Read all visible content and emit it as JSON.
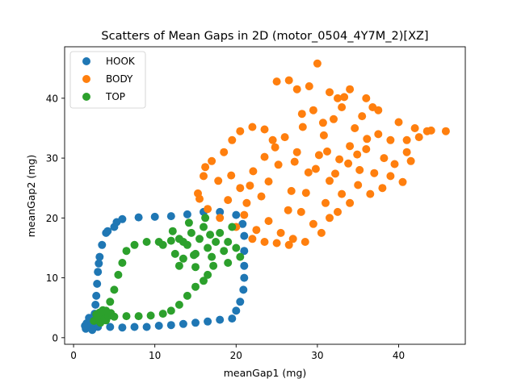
{
  "chart_data": {
    "type": "scatter",
    "title": "Scatters of Mean Gaps in 2D (motor_0504_4Y7M_2)[XZ]",
    "xlabel": "meanGap1 (mg)",
    "ylabel": "meanGap2 (mg)",
    "xlim": [
      -1.1,
      48.2
    ],
    "ylim": [
      -1.1,
      48.6
    ],
    "xticks": [
      0,
      10,
      20,
      30,
      40
    ],
    "yticks": [
      0,
      10,
      20,
      30,
      40
    ],
    "grid": false,
    "legend_position": "top-left",
    "series": [
      {
        "name": "HOOK",
        "color": "#1f77b4",
        "points": [
          [
            1.5,
            1.5
          ],
          [
            1.8,
            2.2
          ],
          [
            2.1,
            1.8
          ],
          [
            2.4,
            2.6
          ],
          [
            2.0,
            2.9
          ],
          [
            1.6,
            2.4
          ],
          [
            2.7,
            1.9
          ],
          [
            3.0,
            2.4
          ],
          [
            2.3,
            1.3
          ],
          [
            1.9,
            3.3
          ],
          [
            2.6,
            3.1
          ],
          [
            1.4,
            2.0
          ],
          [
            2.9,
            2.8
          ],
          [
            2.2,
            2.2
          ],
          [
            3.0,
            1.8
          ],
          [
            4.5,
            1.8
          ],
          [
            6.0,
            1.7
          ],
          [
            7.5,
            1.8
          ],
          [
            9.0,
            1.8
          ],
          [
            10.5,
            2.0
          ],
          [
            12.0,
            2.1
          ],
          [
            13.5,
            2.3
          ],
          [
            15.0,
            2.5
          ],
          [
            16.5,
            2.7
          ],
          [
            18.0,
            3.0
          ],
          [
            19.5,
            3.2
          ],
          [
            20.0,
            4.5
          ],
          [
            20.5,
            6.0
          ],
          [
            20.9,
            8.0
          ],
          [
            21.0,
            10.0
          ],
          [
            21.0,
            12.0
          ],
          [
            21.0,
            14.5
          ],
          [
            21.0,
            17.0
          ],
          [
            20.8,
            19.0
          ],
          [
            20.0,
            20.5
          ],
          [
            18.0,
            21.0
          ],
          [
            16.0,
            21.0
          ],
          [
            14.0,
            20.6
          ],
          [
            12.0,
            20.3
          ],
          [
            10.0,
            20.2
          ],
          [
            8.0,
            20.1
          ],
          [
            6.0,
            19.8
          ],
          [
            5.0,
            18.5
          ],
          [
            4.0,
            17.5
          ],
          [
            3.5,
            15.5
          ],
          [
            3.2,
            13.5
          ],
          [
            3.0,
            11.0
          ],
          [
            2.9,
            9.0
          ],
          [
            2.8,
            7.0
          ],
          [
            2.7,
            5.5
          ],
          [
            2.6,
            4.0
          ],
          [
            5.3,
            19.3
          ],
          [
            4.2,
            17.8
          ],
          [
            3.1,
            12.4
          ]
        ]
      },
      {
        "name": "BODY",
        "color": "#ff7f0e",
        "points": [
          [
            15.3,
            24.1
          ],
          [
            16.2,
            28.5
          ],
          [
            17.8,
            26.2
          ],
          [
            19.0,
            23.0
          ],
          [
            20.5,
            25.0
          ],
          [
            21.3,
            22.5
          ],
          [
            22.1,
            27.8
          ],
          [
            23.5,
            30.2
          ],
          [
            24.0,
            26.1
          ],
          [
            25.2,
            28.9
          ],
          [
            26.0,
            33.5
          ],
          [
            26.8,
            24.5
          ],
          [
            27.5,
            31.0
          ],
          [
            28.2,
            35.2
          ],
          [
            28.9,
            27.6
          ],
          [
            29.5,
            38.0
          ],
          [
            30.2,
            30.5
          ],
          [
            30.8,
            33.8
          ],
          [
            31.5,
            26.2
          ],
          [
            32.0,
            36.5
          ],
          [
            32.7,
            29.8
          ],
          [
            33.3,
            40.2
          ],
          [
            34.0,
            32.0
          ],
          [
            34.6,
            35.0
          ],
          [
            35.2,
            28.0
          ],
          [
            36.0,
            31.5
          ],
          [
            36.8,
            38.5
          ],
          [
            37.5,
            34.0
          ],
          [
            38.2,
            30.0
          ],
          [
            39.0,
            33.0
          ],
          [
            40.0,
            36.0
          ],
          [
            41.0,
            31.0
          ],
          [
            42.0,
            35.0
          ],
          [
            43.5,
            34.5
          ],
          [
            45.8,
            34.5
          ],
          [
            21.0,
            20.5
          ],
          [
            22.5,
            18.0
          ],
          [
            24.0,
            19.5
          ],
          [
            25.5,
            17.5
          ],
          [
            27.0,
            16.5
          ],
          [
            28.0,
            21.0
          ],
          [
            29.5,
            19.0
          ],
          [
            31.0,
            22.5
          ],
          [
            33.0,
            24.0
          ],
          [
            35.0,
            25.5
          ],
          [
            37.0,
            27.5
          ],
          [
            39.5,
            29.0
          ],
          [
            41.5,
            29.5
          ],
          [
            40.5,
            26.0
          ],
          [
            38.0,
            25.0
          ],
          [
            25.0,
            42.8
          ],
          [
            26.5,
            43.0
          ],
          [
            27.5,
            41.5
          ],
          [
            29.0,
            42.0
          ],
          [
            30.0,
            45.8
          ],
          [
            31.5,
            41.0
          ],
          [
            32.5,
            40.0
          ],
          [
            34.0,
            41.5
          ],
          [
            36.0,
            40.0
          ],
          [
            37.5,
            38.0
          ],
          [
            35.5,
            37.0
          ],
          [
            33.0,
            38.5
          ],
          [
            15.5,
            23.2
          ],
          [
            16.0,
            27.0
          ],
          [
            17.0,
            29.5
          ],
          [
            18.5,
            31.0
          ],
          [
            19.5,
            33.0
          ],
          [
            20.5,
            34.5
          ],
          [
            22.0,
            35.2
          ],
          [
            23.5,
            34.8
          ],
          [
            24.5,
            33.0
          ],
          [
            18.0,
            20.0
          ],
          [
            16.5,
            21.5
          ],
          [
            20.0,
            18.5
          ],
          [
            22.0,
            16.5
          ],
          [
            23.5,
            16.0
          ],
          [
            25.0,
            15.8
          ],
          [
            26.5,
            15.5
          ],
          [
            28.5,
            16.0
          ],
          [
            30.5,
            17.5
          ],
          [
            31.5,
            20.0
          ],
          [
            32.5,
            21.0
          ],
          [
            34.0,
            22.5
          ],
          [
            36.5,
            24.0
          ],
          [
            39.0,
            27.0
          ],
          [
            41.0,
            33.0
          ],
          [
            42.5,
            33.5
          ],
          [
            44.0,
            34.6
          ],
          [
            24.8,
            31.8
          ],
          [
            27.2,
            29.4
          ],
          [
            29.8,
            28.2
          ],
          [
            31.2,
            31.1
          ],
          [
            33.8,
            29.1
          ],
          [
            28.6,
            24.2
          ],
          [
            26.4,
            21.3
          ],
          [
            23.1,
            23.6
          ],
          [
            21.7,
            25.4
          ],
          [
            19.4,
            27.1
          ],
          [
            32.2,
            27.4
          ],
          [
            34.9,
            30.6
          ],
          [
            36.1,
            33.2
          ],
          [
            30.7,
            35.9
          ],
          [
            28.1,
            37.4
          ]
        ]
      },
      {
        "name": "TOP",
        "color": "#2ca02c",
        "points": [
          [
            2.5,
            2.8
          ],
          [
            3.0,
            3.3
          ],
          [
            3.5,
            3.8
          ],
          [
            4.0,
            2.9
          ],
          [
            3.2,
            4.2
          ],
          [
            3.8,
            3.1
          ],
          [
            4.3,
            3.6
          ],
          [
            2.8,
            3.9
          ],
          [
            3.6,
            4.6
          ],
          [
            4.6,
            4.1
          ],
          [
            3.3,
            2.5
          ],
          [
            4.0,
            4.5
          ],
          [
            4.5,
            6.0
          ],
          [
            5.0,
            8.0
          ],
          [
            5.5,
            10.5
          ],
          [
            6.0,
            12.5
          ],
          [
            6.5,
            14.5
          ],
          [
            7.5,
            15.5
          ],
          [
            9.0,
            16.0
          ],
          [
            10.5,
            16.0
          ],
          [
            12.0,
            16.2
          ],
          [
            13.5,
            16.0
          ],
          [
            5.0,
            3.5
          ],
          [
            6.5,
            3.6
          ],
          [
            8.0,
            3.6
          ],
          [
            9.5,
            3.7
          ],
          [
            11.0,
            4.0
          ],
          [
            12.0,
            4.5
          ],
          [
            13.0,
            5.5
          ],
          [
            14.0,
            7.0
          ],
          [
            15.0,
            8.5
          ],
          [
            16.0,
            9.5
          ],
          [
            16.5,
            10.5
          ],
          [
            11.0,
            15.5
          ],
          [
            12.5,
            14.0
          ],
          [
            13.0,
            16.5
          ],
          [
            13.5,
            13.2
          ],
          [
            14.0,
            15.5
          ],
          [
            14.5,
            17.5
          ],
          [
            15.0,
            14.0
          ],
          [
            15.5,
            16.5
          ],
          [
            16.0,
            18.5
          ],
          [
            16.5,
            15.0
          ],
          [
            17.0,
            13.5
          ],
          [
            17.5,
            16.0
          ],
          [
            18.0,
            17.5
          ],
          [
            18.5,
            14.5
          ],
          [
            19.0,
            16.0
          ],
          [
            19.5,
            18.5
          ],
          [
            20.0,
            15.0
          ],
          [
            14.2,
            19.2
          ],
          [
            16.2,
            20.0
          ],
          [
            15.0,
            11.8
          ],
          [
            17.2,
            12.0
          ],
          [
            13.0,
            12.0
          ],
          [
            20.5,
            13.5
          ],
          [
            19.0,
            12.5
          ],
          [
            12.2,
            17.8
          ],
          [
            14.8,
            13.8
          ],
          [
            16.8,
            17.2
          ]
        ]
      }
    ]
  }
}
